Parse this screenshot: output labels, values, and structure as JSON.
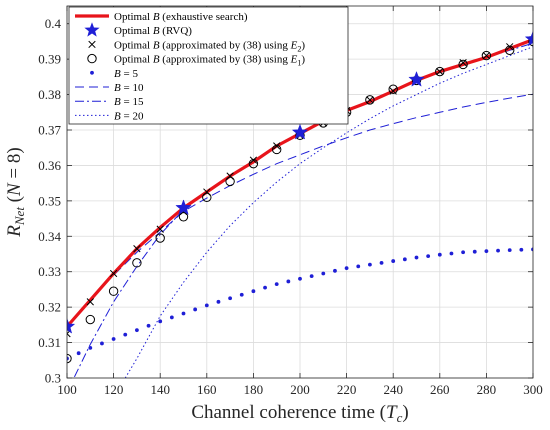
{
  "chart_data": {
    "type": "line",
    "xlabel": "Channel coherence time (T_c)",
    "ylabel": "R_Net (N = 8)",
    "xlim": [
      100,
      300
    ],
    "ylim": [
      0.3,
      0.405
    ],
    "xticks": [
      100,
      120,
      140,
      160,
      180,
      200,
      220,
      240,
      260,
      280,
      300
    ],
    "yticks": [
      0.3,
      0.31,
      0.32,
      0.33,
      0.34,
      0.35,
      0.36,
      0.37,
      0.38,
      0.39,
      0.4
    ],
    "xtick_labels": [
      "100",
      "120",
      "140",
      "160",
      "180",
      "200",
      "220",
      "240",
      "260",
      "280",
      "300"
    ],
    "ytick_labels": [
      "0.3",
      "0.31",
      "0.32",
      "0.33",
      "0.34",
      "0.35",
      "0.36",
      "0.37",
      "0.38",
      "0.39",
      "0.4"
    ],
    "grid": true,
    "legend_position": "top-left",
    "series": [
      {
        "name": "Optimal B (exhaustive search)",
        "style": "solid-thick",
        "color": "#e8141b",
        "x": [
          100,
          110,
          120,
          130,
          140,
          150,
          160,
          170,
          180,
          190,
          200,
          210,
          220,
          230,
          240,
          250,
          260,
          270,
          280,
          290,
          300
        ],
        "y": [
          0.3145,
          0.322,
          0.3295,
          0.3365,
          0.3425,
          0.348,
          0.3525,
          0.357,
          0.361,
          0.3655,
          0.369,
          0.3725,
          0.3755,
          0.378,
          0.381,
          0.384,
          0.3865,
          0.3885,
          0.3905,
          0.393,
          0.3955
        ]
      },
      {
        "name": "Optimal B (RVQ)",
        "style": "star",
        "color": "#1f1fd6",
        "x": [
          100,
          150,
          200,
          250,
          300
        ],
        "y": [
          0.3145,
          0.348,
          0.3693,
          0.3842,
          0.3956
        ]
      },
      {
        "name": "Optimal B (approximated by (38) using E_2)",
        "style": "x",
        "color": "#000000",
        "x": [
          100,
          110,
          120,
          130,
          140,
          150,
          160,
          170,
          180,
          190,
          200,
          210,
          220,
          230,
          240,
          250,
          260,
          270,
          280,
          290,
          300
        ],
        "y": [
          0.3125,
          0.3215,
          0.3295,
          0.3365,
          0.342,
          0.347,
          0.3525,
          0.357,
          0.3615,
          0.3655,
          0.3685,
          0.372,
          0.3755,
          0.3785,
          0.381,
          0.384,
          0.3865,
          0.389,
          0.391,
          0.3935,
          0.3955
        ]
      },
      {
        "name": "Optimal B (approximated by (38) using E_1)",
        "style": "circle",
        "color": "#000000",
        "x": [
          100,
          110,
          120,
          130,
          140,
          150,
          160,
          170,
          180,
          190,
          200,
          210,
          220,
          230,
          240,
          250,
          260,
          270,
          280,
          290,
          300
        ],
        "y": [
          0.3055,
          0.3165,
          0.3245,
          0.3325,
          0.3395,
          0.3455,
          0.351,
          0.3555,
          0.3605,
          0.3645,
          0.3685,
          0.372,
          0.375,
          0.3785,
          0.3815,
          0.384,
          0.3865,
          0.3885,
          0.391,
          0.3925,
          0.395
        ]
      },
      {
        "name": "B = 5",
        "style": "dotted-thick",
        "color": "#1f1fd6",
        "x": [
          100,
          110,
          120,
          130,
          140,
          150,
          160,
          170,
          180,
          190,
          200,
          210,
          220,
          230,
          240,
          250,
          260,
          270,
          280,
          290,
          300
        ],
        "y": [
          0.3055,
          0.3085,
          0.311,
          0.3135,
          0.316,
          0.3182,
          0.3205,
          0.3225,
          0.3245,
          0.3265,
          0.328,
          0.3295,
          0.331,
          0.332,
          0.333,
          0.334,
          0.3348,
          0.3355,
          0.3358,
          0.3361,
          0.3363
        ]
      },
      {
        "name": "B = 10",
        "style": "dashed",
        "color": "#1f1fd6",
        "x": [
          100,
          110,
          120,
          130,
          140,
          150,
          160,
          170,
          180,
          190,
          200,
          210,
          220,
          230,
          240,
          250,
          260,
          270,
          280,
          290,
          300
        ],
        "y": [
          0.3148,
          0.3222,
          0.329,
          0.3355,
          0.3412,
          0.347,
          0.3508,
          0.3543,
          0.3575,
          0.3605,
          0.363,
          0.3655,
          0.3678,
          0.37,
          0.3718,
          0.3735,
          0.375,
          0.3765,
          0.3778,
          0.379,
          0.3801
        ]
      },
      {
        "name": "B = 15",
        "style": "dashdot",
        "color": "#1f1fd6",
        "x": [
          100,
          110,
          120,
          130,
          140,
          150,
          160,
          170,
          180,
          190,
          200,
          210,
          220,
          230,
          240,
          250,
          260,
          270,
          280,
          290,
          300
        ],
        "y": [
          0.296,
          0.3095,
          0.3215,
          0.3315,
          0.3405,
          0.3475,
          0.3525,
          0.357,
          0.361,
          0.3652,
          0.369,
          0.3722,
          0.3754,
          0.3784,
          0.3812,
          0.3838,
          0.3862,
          0.3884,
          0.3905,
          0.3925,
          0.3945
        ]
      },
      {
        "name": "B = 20",
        "style": "dotted-thin",
        "color": "#1f1fd6",
        "x": [
          125,
          130,
          140,
          150,
          160,
          170,
          180,
          190,
          200,
          210,
          220,
          230,
          240,
          250,
          260,
          270,
          280,
          290,
          300
        ],
        "y": [
          0.3,
          0.3055,
          0.3175,
          0.327,
          0.3355,
          0.343,
          0.3495,
          0.3553,
          0.3605,
          0.365,
          0.3692,
          0.3732,
          0.3768,
          0.38,
          0.3832,
          0.386,
          0.3885,
          0.391,
          0.3935
        ]
      }
    ],
    "legend": [
      {
        "prefix": "Optimal ",
        "var": "B",
        "suffix": " (exhaustive search)"
      },
      {
        "prefix": "Optimal ",
        "var": "B",
        "suffix": " (RVQ)"
      },
      {
        "prefix": "Optimal ",
        "var": "B",
        "suffix": " (approximated by (38) using ",
        "sym": "E",
        "sub": "2",
        "end": ")"
      },
      {
        "prefix": "Optimal ",
        "var": "B",
        "suffix": " (approximated by (38) using ",
        "sym": "E",
        "sub": "1",
        "end": ")"
      },
      {
        "prefix": "",
        "var": "B",
        "suffix": " = 5"
      },
      {
        "prefix": "",
        "var": "B",
        "suffix": " = 10"
      },
      {
        "prefix": "",
        "var": "B",
        "suffix": " = 15"
      },
      {
        "prefix": "",
        "var": "B",
        "suffix": " = 20"
      }
    ],
    "xlabel_parts": {
      "text": "Channel coherence time (",
      "var": "T",
      "sub": "c",
      "end": ")"
    },
    "ylabel_parts": {
      "var": "R",
      "sub": "Net",
      "text": " (",
      "var2": "N",
      "end": " = 8)"
    }
  }
}
